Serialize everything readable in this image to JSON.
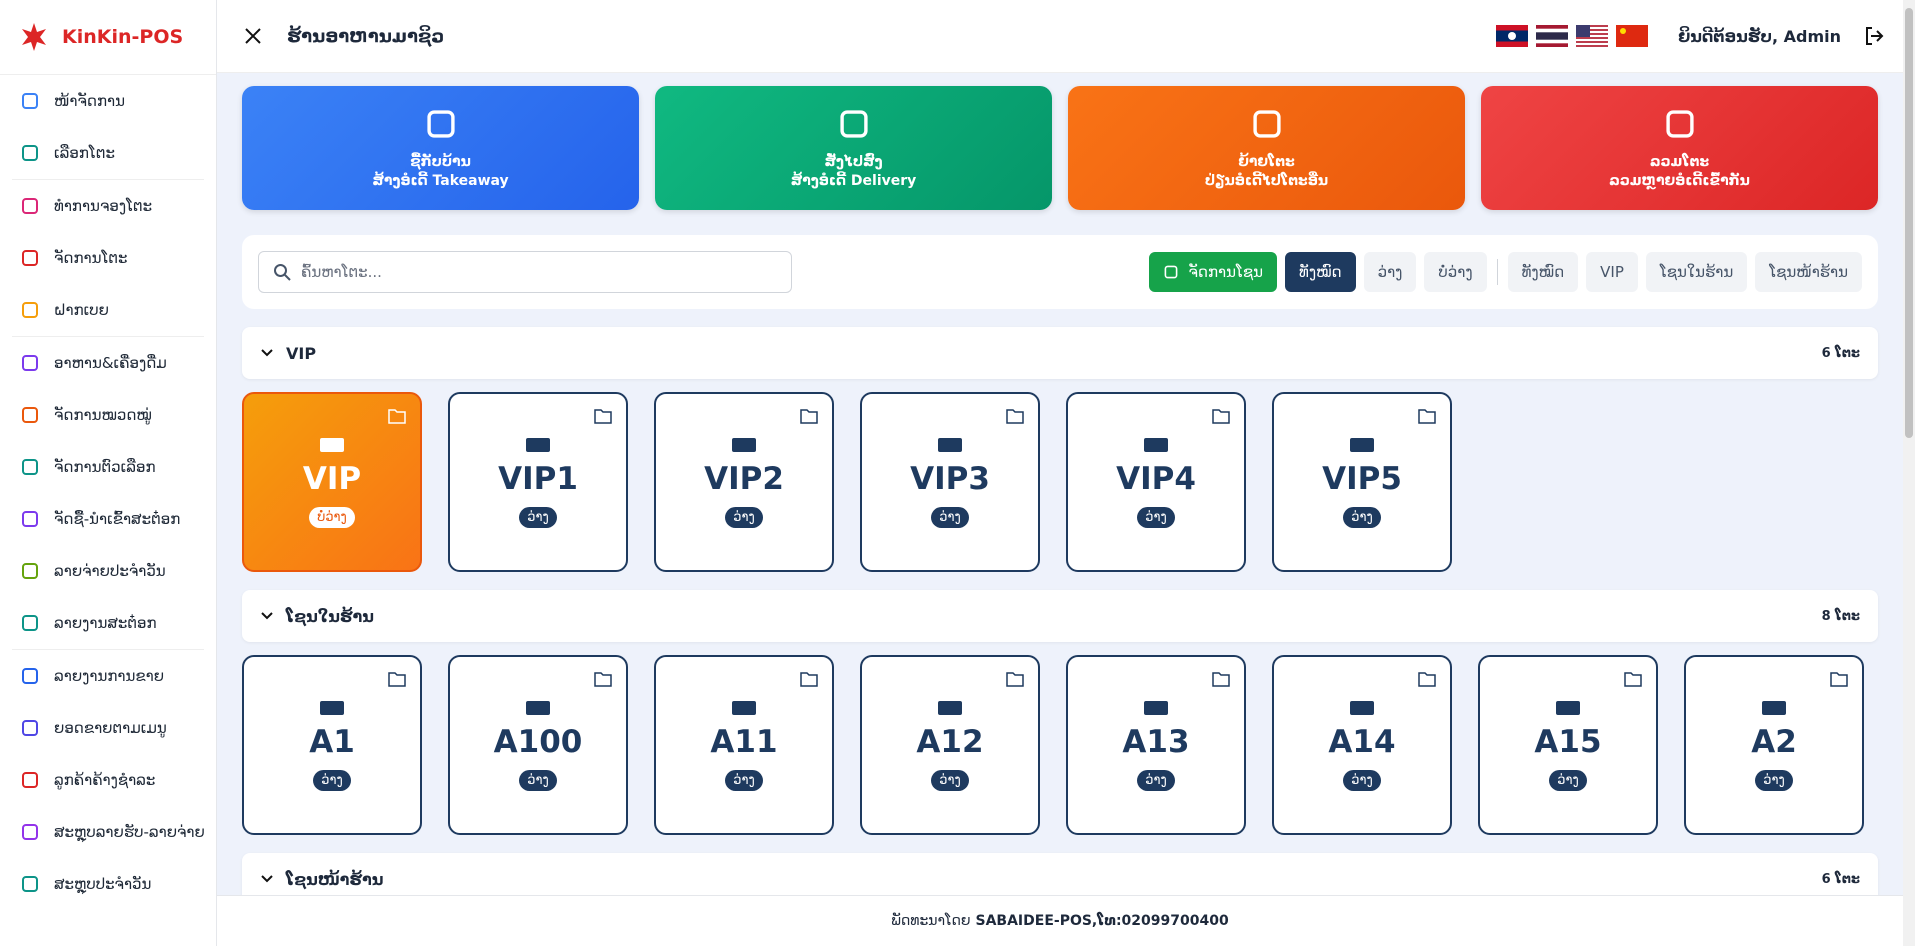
{
  "sidebar": {
    "brand": "KinKin-POS",
    "items": [
      "ໜ້າຈັດການ",
      "ເລືອກໂຕະ",
      "ທຳການຈອງໂຕະ",
      "ຈັດການໂຕະ",
      "ຝາກເບຍ",
      "ອາຫານ&ເຄື່ອງດື່ມ",
      "ຈັດການໝວດໝູ່",
      "ຈັດການຕົວເລືອກ",
      "ຈັດຊື້-ນຳເຂົ້າສະຕ໋ອກ",
      "ລາຍຈ່າຍປະຈຳວັນ",
      "ລາຍງານສະຕ໋ອກ",
      "ລາຍງານການຂາຍ",
      "ຍອດຂາຍຕາມເມນູ",
      "ລູກຄ້າຄ້າງຊຳລະ",
      "ສະຫຼຸບລາຍຮັບ-ລາຍຈ່າຍ",
      "ສະຫຼຸບປະຈຳວັນ"
    ]
  },
  "header": {
    "title": "ຮ້ານອາຫານມາຊິວ",
    "welcome": "ຍິນດີຕ້ອນຮັບ, Admin"
  },
  "actions": [
    {
      "title": "ຊື້ກັບບ້ານ",
      "subtitle": "ສ້າງອໍເດີ້ Takeaway"
    },
    {
      "title": "ສັ່ງໄປສົ່ງ",
      "subtitle": "ສ້າງອໍເດີ້ Delivery"
    },
    {
      "title": "ຍ້າຍໂຕະ",
      "subtitle": "ປ່ຽນອໍເດີ້ໄປໂຕະອື່ນ"
    },
    {
      "title": "ລວມໂຕະ",
      "subtitle": "ລວມຫຼາຍອໍເດີ້ເຂົ້າກັນ"
    }
  ],
  "search": {
    "placeholder": "ຄົ້ນຫາໂຕະ..."
  },
  "filters": {
    "manage": "ຈັດການໂຊນ",
    "status": [
      "ທັງໝົດ",
      "ວ່າງ",
      "ບໍ່ວ່າງ"
    ],
    "zones": [
      "ທັງໝົດ",
      "VIP",
      "ໂຊນໃນຮ້ານ",
      "ໂຊນໜ້າຮ້ານ"
    ]
  },
  "sections": [
    {
      "name": "VIP",
      "count": "6 ໂຕະ",
      "tables": [
        {
          "name": "VIP",
          "status": "ບໍ່ວ່າງ"
        },
        {
          "name": "VIP1",
          "status": "ວ່າງ"
        },
        {
          "name": "VIP2",
          "status": "ວ່າງ"
        },
        {
          "name": "VIP3",
          "status": "ວ່າງ"
        },
        {
          "name": "VIP4",
          "status": "ວ່າງ"
        },
        {
          "name": "VIP5",
          "status": "ວ່າງ"
        }
      ]
    },
    {
      "name": "ໂຊນໃນຮ້ານ",
      "count": "8 ໂຕະ",
      "tables": [
        {
          "name": "A1",
          "status": "ວ່າງ"
        },
        {
          "name": "A100",
          "status": "ວ່າງ"
        },
        {
          "name": "A11",
          "status": "ວ່າງ"
        },
        {
          "name": "A12",
          "status": "ວ່າງ"
        },
        {
          "name": "A13",
          "status": "ວ່າງ"
        },
        {
          "name": "A14",
          "status": "ວ່າງ"
        },
        {
          "name": "A15",
          "status": "ວ່າງ"
        },
        {
          "name": "A2",
          "status": "ວ່າງ"
        }
      ]
    },
    {
      "name": "ໂຊນໜ້າຮ້ານ",
      "count": "6 ໂຕະ",
      "tables": []
    }
  ],
  "footer": {
    "prefix": "ພັດທະນາໂດຍ",
    "company": "SABAIDEE-POS,ໂທ:02099700400"
  }
}
